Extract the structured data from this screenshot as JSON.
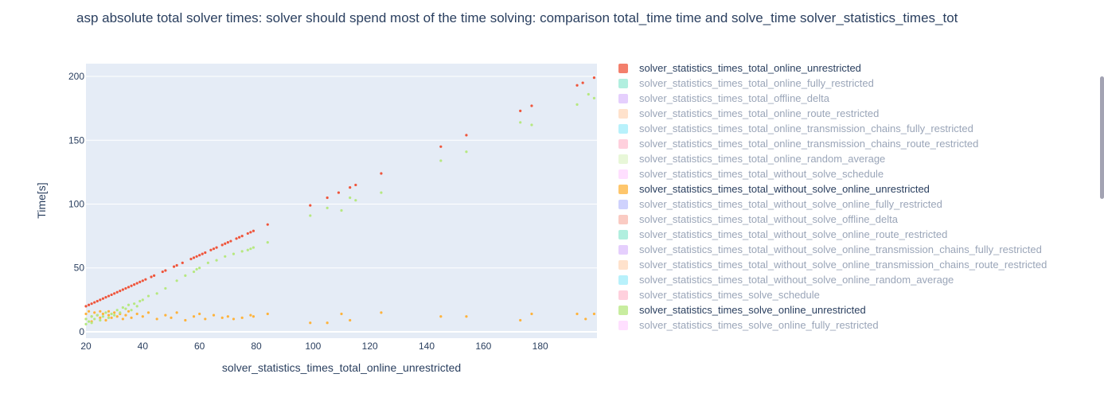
{
  "chart_data": {
    "type": "scatter",
    "title": "asp absolute total solver times:  solver should spend most of the time solving: comparison total_time time and solve_time  solver_statistics_times_tot",
    "xlabel": "solver_statistics_times_total_online_unrestricted",
    "ylabel": "Time[s]",
    "xlim": [
      20,
      200
    ],
    "ylim": [
      -5,
      210
    ],
    "x_ticks": [
      20,
      40,
      60,
      80,
      100,
      120,
      140,
      160,
      180
    ],
    "y_ticks": [
      0,
      50,
      100,
      150,
      200
    ],
    "grid": true,
    "legend_position": "right",
    "series": [
      {
        "name": "solver_statistics_times_total_online_unrestricted",
        "color": "#ef553b",
        "active": true,
        "x": [
          20,
          21,
          22,
          23,
          24,
          25,
          26,
          27,
          28,
          29,
          30,
          31,
          32,
          33,
          34,
          35,
          36,
          37,
          38,
          39,
          40,
          41,
          43,
          44,
          47,
          48,
          51,
          52,
          54,
          57,
          58,
          59,
          60,
          61,
          62,
          64,
          65,
          66,
          68,
          69,
          70,
          71,
          73,
          74,
          75,
          77,
          78,
          79,
          84,
          99,
          105,
          109,
          113,
          115,
          124,
          145,
          154,
          173,
          177,
          193,
          195,
          199
        ],
        "y": [
          20,
          21,
          22,
          23,
          24,
          25,
          26,
          27,
          28,
          29,
          30,
          31,
          32,
          33,
          34,
          35,
          36,
          37,
          38,
          39,
          40,
          41,
          43,
          44,
          47,
          48,
          51,
          52,
          54,
          57,
          58,
          59,
          60,
          61,
          62,
          64,
          65,
          66,
          68,
          69,
          70,
          71,
          73,
          74,
          75,
          77,
          78,
          79,
          84,
          99,
          105,
          109,
          113,
          115,
          124,
          145,
          154,
          173,
          177,
          193,
          195,
          199
        ]
      },
      {
        "name": "solver_statistics_times_total_without_solve_online_unrestricted",
        "color": "#feb33c",
        "active": true,
        "x": [
          20,
          20,
          21,
          22,
          22,
          23,
          24,
          25,
          25,
          26,
          27,
          28,
          28,
          29,
          30,
          31,
          32,
          33,
          34,
          35,
          36,
          38,
          40,
          42,
          45,
          48,
          50,
          52,
          55,
          58,
          60,
          62,
          65,
          68,
          70,
          72,
          75,
          78,
          79,
          84,
          99,
          105,
          110,
          113,
          124,
          145,
          154,
          173,
          177,
          193,
          196,
          199
        ],
        "y": [
          14,
          10,
          16,
          12,
          8,
          15,
          13,
          11,
          16,
          14,
          9,
          13,
          16,
          11,
          15,
          12,
          14,
          10,
          13,
          16,
          11,
          14,
          12,
          15,
          10,
          13,
          11,
          15,
          9,
          12,
          14,
          10,
          13,
          11,
          12,
          10,
          11,
          13,
          12,
          14,
          7,
          7,
          14,
          9,
          15,
          12,
          12,
          9,
          14,
          14,
          10,
          14
        ]
      },
      {
        "name": "solver_statistics_times_solve_online_unrestricted",
        "color": "#b6e880",
        "active": true,
        "x": [
          20,
          20,
          21,
          22,
          22,
          23,
          24,
          25,
          26,
          27,
          28,
          29,
          30,
          31,
          32,
          33,
          34,
          35,
          36,
          37,
          38,
          39,
          40,
          42,
          45,
          48,
          52,
          55,
          58,
          59,
          60,
          63,
          66,
          69,
          72,
          75,
          77,
          78,
          79,
          84,
          99,
          105,
          110,
          113,
          115,
          124,
          145,
          154,
          173,
          177,
          193,
          197,
          199
        ],
        "y": [
          6,
          10,
          8,
          12,
          7,
          10,
          13,
          9,
          12,
          15,
          11,
          14,
          13,
          17,
          15,
          19,
          18,
          21,
          17,
          22,
          20,
          24,
          25,
          28,
          30,
          34,
          40,
          44,
          47,
          49,
          50,
          54,
          56,
          59,
          61,
          63,
          64,
          65,
          66,
          70,
          91,
          97,
          95,
          105,
          103,
          109,
          134,
          141,
          164,
          162,
          178,
          186,
          183
        ]
      },
      {
        "name": "solver_statistics_times_total_online_fully_restricted",
        "color": "#00cc96",
        "active": false
      },
      {
        "name": "solver_statistics_times_total_offline_delta",
        "color": "#ab63fa",
        "active": false
      },
      {
        "name": "solver_statistics_times_total_online_route_restricted",
        "color": "#ffa15a",
        "active": false
      },
      {
        "name": "solver_statistics_times_total_online_transmission_chains_fully_restricted",
        "color": "#19d3f3",
        "active": false
      },
      {
        "name": "solver_statistics_times_total_online_transmission_chains_route_restricted",
        "color": "#ff6692",
        "active": false
      },
      {
        "name": "solver_statistics_times_total_online_random_average",
        "color": "#b6e880",
        "active": false
      },
      {
        "name": "solver_statistics_times_total_without_solve_schedule",
        "color": "#ff97ff",
        "active": false
      },
      {
        "name": "solver_statistics_times_total_without_solve_online_fully_restricted",
        "color": "#636efa",
        "active": false
      },
      {
        "name": "solver_statistics_times_total_without_solve_offline_delta",
        "color": "#ef553b",
        "active": false
      },
      {
        "name": "solver_statistics_times_total_without_solve_online_route_restricted",
        "color": "#00cc96",
        "active": false
      },
      {
        "name": "solver_statistics_times_total_without_solve_online_transmission_chains_fully_restricted",
        "color": "#ab63fa",
        "active": false
      },
      {
        "name": "solver_statistics_times_total_without_solve_online_transmission_chains_route_restricted",
        "color": "#ffa15a",
        "active": false
      },
      {
        "name": "solver_statistics_times_total_without_solve_online_random_average",
        "color": "#19d3f3",
        "active": false
      },
      {
        "name": "solver_statistics_times_solve_schedule",
        "color": "#ff6692",
        "active": false
      },
      {
        "name": "solver_statistics_times_solve_online_fully_restricted",
        "color": "#ff97ff",
        "active": false
      }
    ],
    "legend_order": [
      "solver_statistics_times_total_online_unrestricted",
      "solver_statistics_times_total_online_fully_restricted",
      "solver_statistics_times_total_offline_delta",
      "solver_statistics_times_total_online_route_restricted",
      "solver_statistics_times_total_online_transmission_chains_fully_restricted",
      "solver_statistics_times_total_online_transmission_chains_route_restricted",
      "solver_statistics_times_total_online_random_average",
      "solver_statistics_times_total_without_solve_schedule",
      "solver_statistics_times_total_without_solve_online_unrestricted",
      "solver_statistics_times_total_without_solve_online_fully_restricted",
      "solver_statistics_times_total_without_solve_offline_delta",
      "solver_statistics_times_total_without_solve_online_route_restricted",
      "solver_statistics_times_total_without_solve_online_transmission_chains_fully_restricted",
      "solver_statistics_times_total_without_solve_online_transmission_chains_route_restricted",
      "solver_statistics_times_total_without_solve_online_random_average",
      "solver_statistics_times_solve_schedule",
      "solver_statistics_times_solve_online_unrestricted",
      "solver_statistics_times_solve_online_fully_restricted"
    ]
  },
  "colors": {
    "plot_bg": "#e5ecf6",
    "grid": "#ffffff",
    "text_active": "#2a3f5f",
    "text_inactive": "#9aa5b8"
  }
}
